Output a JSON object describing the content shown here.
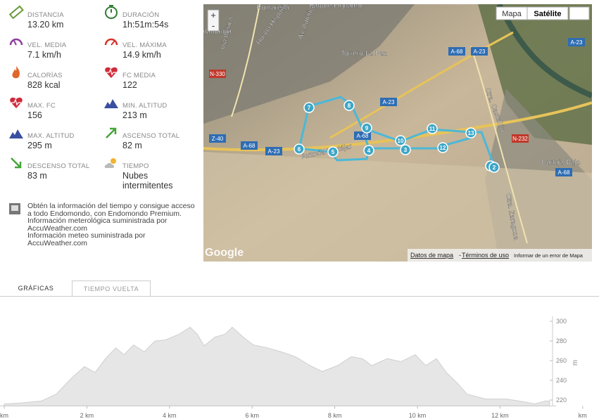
{
  "stats": [
    {
      "label": "DISTANCIA",
      "value": "13.20 km"
    },
    {
      "label": "DURACIÓN",
      "value": "1h:51m:54s"
    },
    {
      "label": "VEL. MEDIA",
      "value": "7.1 km/h"
    },
    {
      "label": "VEL. MÁXIMA",
      "value": "14.9 km/h"
    },
    {
      "label": "CALORÍAS",
      "value": "828 kcal"
    },
    {
      "label": "FC MEDIA",
      "value": "122"
    },
    {
      "label": "MAX. FC",
      "value": "156"
    },
    {
      "label": "MIN. ALTITUD",
      "value": "213 m"
    },
    {
      "label": "MAX. ALTITUD",
      "value": "295 m"
    },
    {
      "label": "ASCENSO TOTAL",
      "value": "82 m"
    },
    {
      "label": "DESCENSO TOTAL",
      "value": "83 m"
    },
    {
      "label": "TIEMPO",
      "value": "Nubes intermitentes"
    }
  ],
  "weather_note": {
    "text": "Obtén la información del tiempo y consigue acceso a todo Endomondo, con Endomondo Premium. Información meterológica suministrada por AccuWeather.com",
    "text2": "Información meteo suministrada por AccuWeather.com"
  },
  "map": {
    "buttons": [
      "Mapa",
      "Satélite"
    ],
    "zoom": [
      "+",
      "-"
    ],
    "places": [
      "Romareda",
      "Parque Pignatelli",
      "Salamanca",
      "Torrero-La Paz",
      "Vía Ibérica",
      "Ronda Hispanidad",
      "Av. América",
      "Autovía Mudéjar",
      "Cartuja Baja",
      "Ctra. Castellón",
      "Ctra. Zaragoza"
    ],
    "roads": [
      "A-23",
      "A-68",
      "N-330",
      "Z-40",
      "N-232"
    ],
    "markers": [
      "1",
      "2",
      "3",
      "4",
      "5",
      "6",
      "7",
      "8",
      "9",
      "10",
      "11",
      "12",
      "13"
    ],
    "logo": "Google",
    "footer": [
      "Datos de mapa",
      "-",
      "Términos de uso",
      "Informar de un error de Mapa"
    ]
  },
  "tabs": [
    "GRÁFICAS",
    "TIEMPO VUELTA"
  ],
  "chart_data": {
    "type": "area",
    "color": "#e6e6e6",
    "y_label": "m",
    "x": [
      0,
      0.4,
      0.9,
      1.26,
      1.6,
      1.94,
      2.2,
      2.45,
      2.7,
      2.9,
      3.13,
      3.39,
      3.65,
      3.9,
      4.24,
      4.5,
      4.67,
      4.84,
      5.1,
      5.35,
      5.52,
      5.78,
      6.03,
      6.37,
      6.7,
      7.05,
      7.4,
      7.7,
      8.07,
      8.4,
      8.67,
      8.9,
      9.27,
      9.6,
      9.95,
      10.2,
      10.46,
      10.7,
      10.97,
      11.2,
      11.65,
      12.16,
      12.6,
      12.84,
      13.1,
      13.2
    ],
    "values": [
      216,
      217,
      219,
      226,
      241,
      254,
      248,
      262,
      273,
      266,
      276,
      269,
      280,
      281,
      287,
      294,
      287,
      275,
      284,
      287,
      294,
      284,
      276,
      273,
      269,
      264,
      255,
      249,
      255,
      264,
      262,
      255,
      262,
      259,
      266,
      255,
      262,
      248,
      237,
      226,
      221,
      221,
      218,
      216,
      219,
      219
    ],
    "xlim": [
      0,
      14
    ],
    "xticks": [
      {
        "value": 0,
        "label": "km"
      },
      {
        "value": 2,
        "label": "2 km"
      },
      {
        "value": 4,
        "label": "4 km"
      },
      {
        "value": 6,
        "label": "6 km"
      },
      {
        "value": 8,
        "label": "8 km"
      },
      {
        "value": 10,
        "label": "10 km"
      },
      {
        "value": 12,
        "label": "12 km"
      },
      {
        "value": 14,
        "label": "km"
      }
    ],
    "ylim": [
      214,
      305
    ],
    "yticks": [
      220,
      240,
      260,
      280,
      300
    ]
  }
}
